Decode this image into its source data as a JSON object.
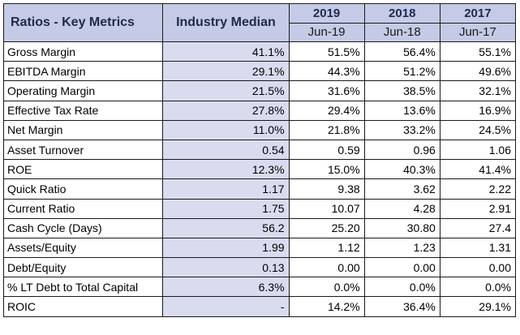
{
  "header": {
    "title": "Ratios - Key Metrics",
    "median_label": "Industry Median",
    "years": [
      "2019",
      "2018",
      "2017"
    ],
    "periods": [
      "Jun-19",
      "Jun-18",
      "Jun-17"
    ]
  },
  "rows": [
    {
      "label": "Gross Margin",
      "median": "41.1%",
      "values": [
        "51.5%",
        "56.4%",
        "55.1%"
      ]
    },
    {
      "label": "EBITDA Margin",
      "median": "29.1%",
      "values": [
        "44.3%",
        "51.2%",
        "49.6%"
      ]
    },
    {
      "label": "Operating Margin",
      "median": "21.5%",
      "values": [
        "31.6%",
        "38.5%",
        "32.1%"
      ]
    },
    {
      "label": "Effective Tax Rate",
      "median": "27.8%",
      "values": [
        "29.4%",
        "13.6%",
        "16.9%"
      ]
    },
    {
      "label": "Net Margin",
      "median": "11.0%",
      "values": [
        "21.8%",
        "33.2%",
        "24.5%"
      ]
    },
    {
      "label": "Asset Turnover",
      "median": "0.54",
      "values": [
        "0.59",
        "0.96",
        "1.06"
      ]
    },
    {
      "label": "ROE",
      "median": "12.3%",
      "values": [
        "15.0%",
        "40.3%",
        "41.4%"
      ]
    },
    {
      "label": "Quick Ratio",
      "median": "1.17",
      "values": [
        "9.38",
        "3.62",
        "2.22"
      ]
    },
    {
      "label": "Current Ratio",
      "median": "1.75",
      "values": [
        "10.07",
        "4.28",
        "2.91"
      ]
    },
    {
      "label": "Cash Cycle (Days)",
      "median": "56.2",
      "values": [
        "25.20",
        "30.80",
        "27.4"
      ]
    },
    {
      "label": "Assets/Equity",
      "median": "1.99",
      "values": [
        "1.12",
        "1.23",
        "1.31"
      ]
    },
    {
      "label": "Debt/Equity",
      "median": "0.13",
      "values": [
        "0.00",
        "0.00",
        "0.00"
      ]
    },
    {
      "label": "% LT Debt to Total Capital",
      "median": "6.3%",
      "values": [
        "0.0%",
        "0.0%",
        "0.0%"
      ]
    },
    {
      "label": "ROIC",
      "median": "-",
      "values": [
        "14.2%",
        "36.4%",
        "29.1%"
      ]
    }
  ],
  "colors": {
    "header_bg": "#c5cbe6",
    "header_text": "#1f2a4d",
    "median_bg": "#d9dbef",
    "cell_bg": "#ffffff",
    "border": "#1a1a1a"
  }
}
